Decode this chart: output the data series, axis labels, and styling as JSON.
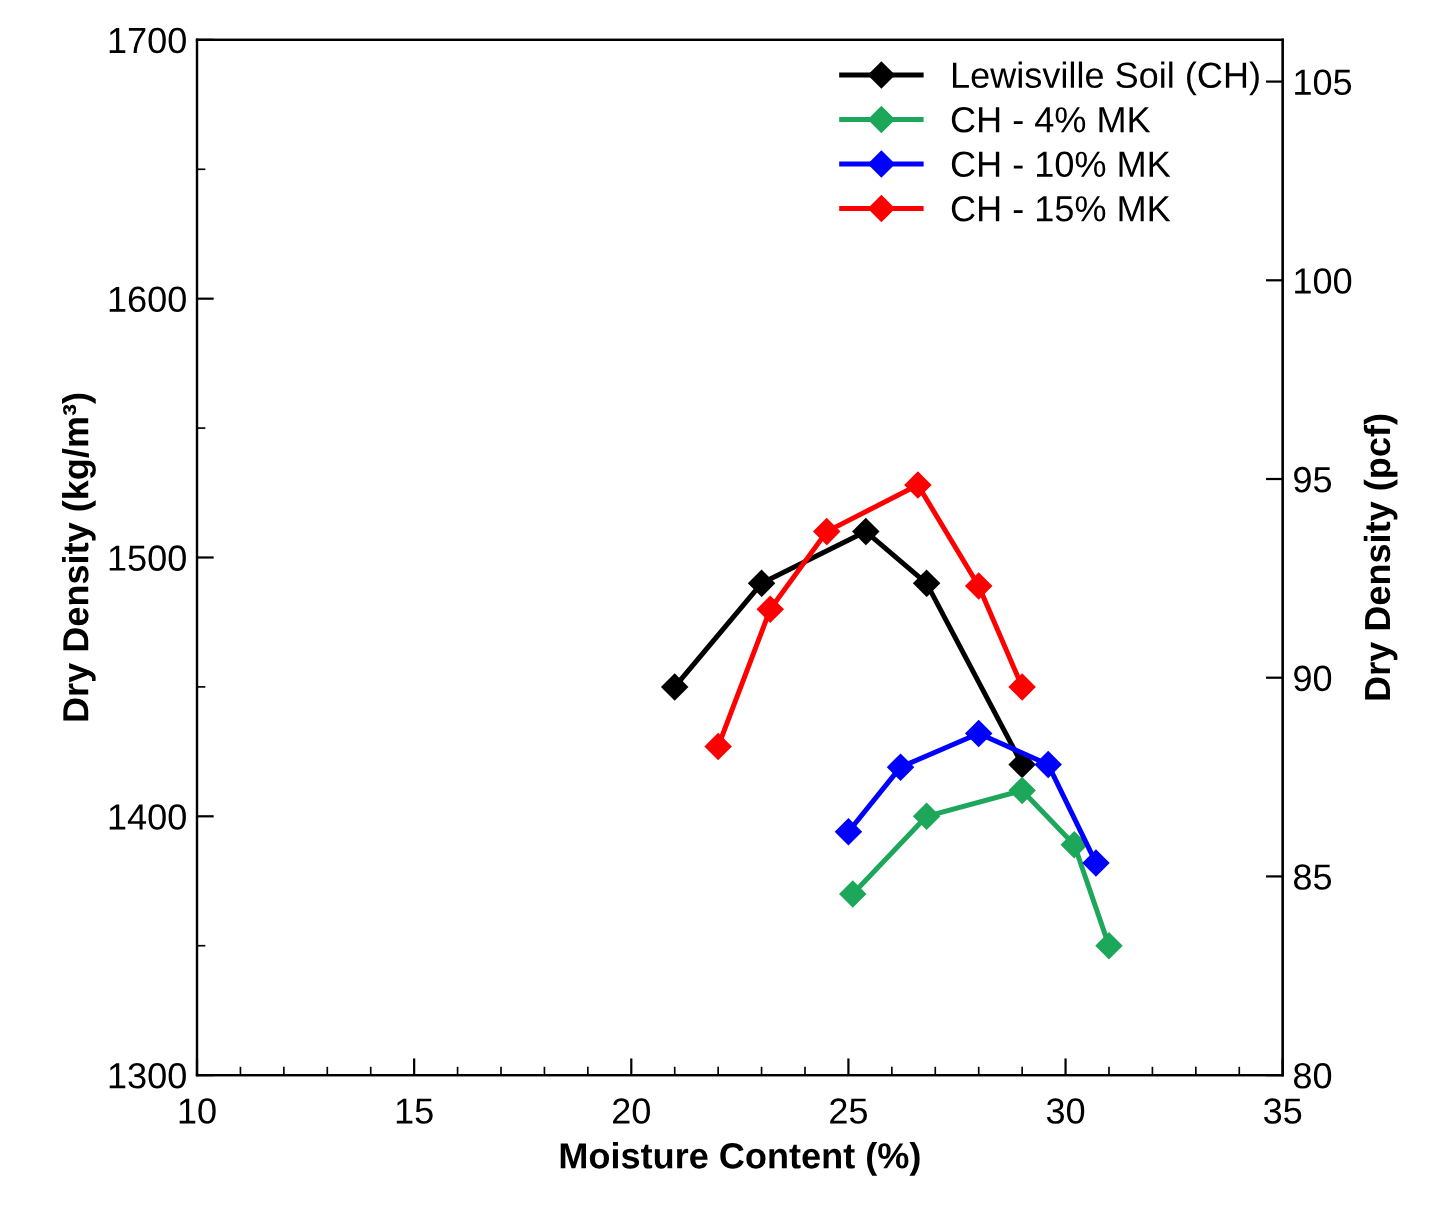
{
  "chart_data": {
    "type": "line",
    "xlabel": "Moisture Content (%)",
    "ylabel": "Dry Density (kg/m³)",
    "y2label": "Dry Density (pcf)",
    "xlim": [
      10,
      35
    ],
    "xticks": [
      10,
      15,
      20,
      25,
      30,
      35
    ],
    "ylim": [
      1300,
      1700
    ],
    "yticks": [
      1300,
      1400,
      1500,
      1600,
      1700
    ],
    "y2lim": [
      80,
      106.05
    ],
    "y2ticks": [
      80,
      85,
      90,
      95,
      100,
      105
    ],
    "marker": "diamond",
    "line_style": "solid",
    "grid": false,
    "legend": "top right",
    "series": [
      {
        "name": "Lewisville Soil (CH)",
        "color": "#000000",
        "x": [
          21,
          23,
          25.4,
          26.8,
          29
        ],
        "values": [
          1450,
          1490,
          1510,
          1490,
          1420
        ]
      },
      {
        "name": "CH - 4% MK",
        "color": "#1ca75a",
        "x": [
          25.1,
          26.8,
          29,
          30.2,
          31
        ],
        "values": [
          1370,
          1400,
          1410,
          1389,
          1350
        ]
      },
      {
        "name": "CH - 10% MK",
        "color": "#0000ff",
        "x": [
          25,
          26.2,
          28,
          29.6,
          30.7
        ],
        "values": [
          1394,
          1419,
          1432,
          1420,
          1382
        ]
      },
      {
        "name": "CH - 15% MK",
        "color": "#ff0000",
        "x": [
          22,
          23.2,
          24.5,
          26.6,
          28,
          29
        ],
        "values": [
          1427,
          1480,
          1510,
          1528,
          1489,
          1450
        ]
      }
    ]
  }
}
